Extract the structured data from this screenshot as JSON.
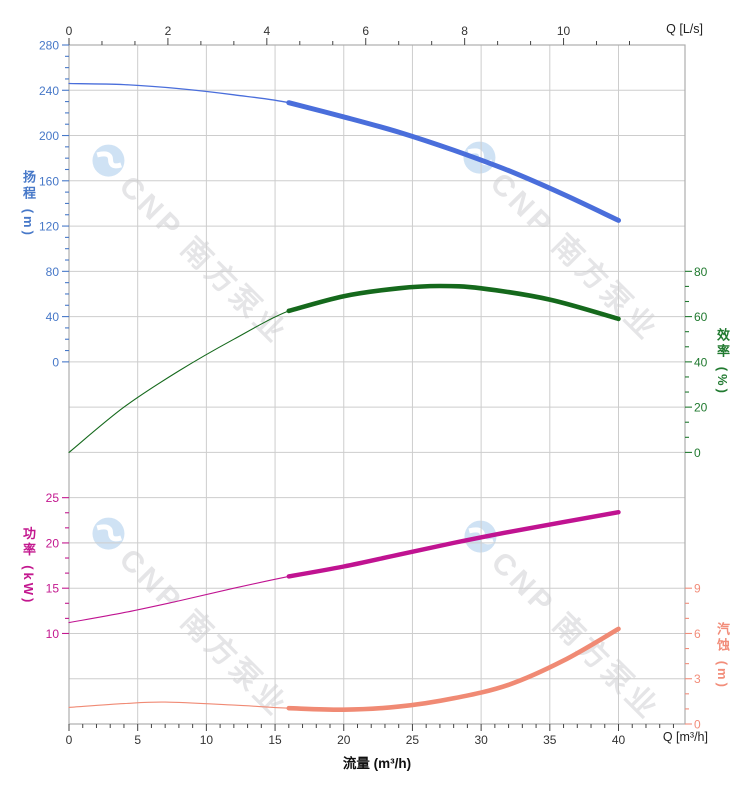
{
  "page": {
    "background": "#ffffff"
  },
  "axes": {
    "top": {
      "unit_label": "Q [L/s]",
      "ticks": [
        0,
        2,
        4,
        6,
        8,
        10
      ]
    },
    "bottom": {
      "unit_label": "Q [m³/h]",
      "xlabel": "流量 (m³/h)",
      "ticks": [
        0,
        5,
        10,
        15,
        20,
        25,
        30,
        35,
        40
      ]
    }
  },
  "watermark": {
    "brand": "CNP",
    "name": "南方泵业"
  },
  "chart_data": {
    "type": "line",
    "title": "",
    "xlabel": "流量 (m³/h)",
    "x_units": {
      "top": "Q [L/s]",
      "bottom": "Q [m³/h]"
    },
    "x_range_m3h": [
      0,
      44.8
    ],
    "grid": true,
    "duty_range_bold_from_m3h": 16,
    "series": [
      {
        "id": "head",
        "name": "扬程",
        "axis_title": "扬程 (m)",
        "unit": "m",
        "side": "left",
        "color": "#4a6edb",
        "label_color": "#4778c8",
        "ticks": [
          0,
          40,
          80,
          120,
          160,
          200,
          240,
          280
        ],
        "bold_from": 16,
        "points": [
          [
            0,
            246
          ],
          [
            4,
            245
          ],
          [
            8,
            241.5
          ],
          [
            12,
            236
          ],
          [
            16,
            229
          ],
          [
            20,
            216.5
          ],
          [
            24,
            203
          ],
          [
            28,
            187
          ],
          [
            32,
            169
          ],
          [
            36,
            148
          ],
          [
            40,
            125
          ]
        ]
      },
      {
        "id": "eff",
        "name": "效率",
        "axis_title": "效率 (%)",
        "unit": "%",
        "side": "right",
        "color": "#15691c",
        "label_color": "#217a30",
        "ticks": [
          0,
          20,
          40,
          60,
          80
        ],
        "bold_from": 16,
        "points": [
          [
            0,
            0
          ],
          [
            4,
            20
          ],
          [
            8,
            36
          ],
          [
            12,
            50
          ],
          [
            16,
            62.5
          ],
          [
            20,
            69
          ],
          [
            24,
            72.5
          ],
          [
            27,
            73.5
          ],
          [
            30,
            72.5
          ],
          [
            35,
            67.5
          ],
          [
            40,
            59
          ]
        ]
      },
      {
        "id": "power",
        "name": "功率",
        "axis_title": "功率 (kW)",
        "unit": "kW",
        "side": "left",
        "color": "#c01391",
        "label_color": "#c3188f",
        "ticks": [
          10,
          15,
          20,
          25
        ],
        "bold_from": 16,
        "points": [
          [
            0,
            11.2
          ],
          [
            4,
            12.3
          ],
          [
            8,
            13.6
          ],
          [
            12,
            15
          ],
          [
            16,
            16.3
          ],
          [
            20,
            17.4
          ],
          [
            24,
            18.7
          ],
          [
            28,
            20
          ],
          [
            32,
            21.2
          ],
          [
            36,
            22.3
          ],
          [
            40,
            23.4
          ]
        ]
      },
      {
        "id": "npsh",
        "name": "汽蚀",
        "axis_title": "汽蚀 (m)",
        "unit": "m",
        "side": "right",
        "color": "#f08a74",
        "label_color": "#f28d7a",
        "ticks": [
          0,
          3,
          6,
          9
        ],
        "bold_from": 16,
        "points": [
          [
            0,
            1.1
          ],
          [
            4,
            1.35
          ],
          [
            7,
            1.45
          ],
          [
            12,
            1.25
          ],
          [
            16,
            1.05
          ],
          [
            20,
            0.95
          ],
          [
            24,
            1.15
          ],
          [
            28,
            1.7
          ],
          [
            32,
            2.6
          ],
          [
            36,
            4.2
          ],
          [
            40,
            6.3
          ]
        ]
      }
    ]
  }
}
